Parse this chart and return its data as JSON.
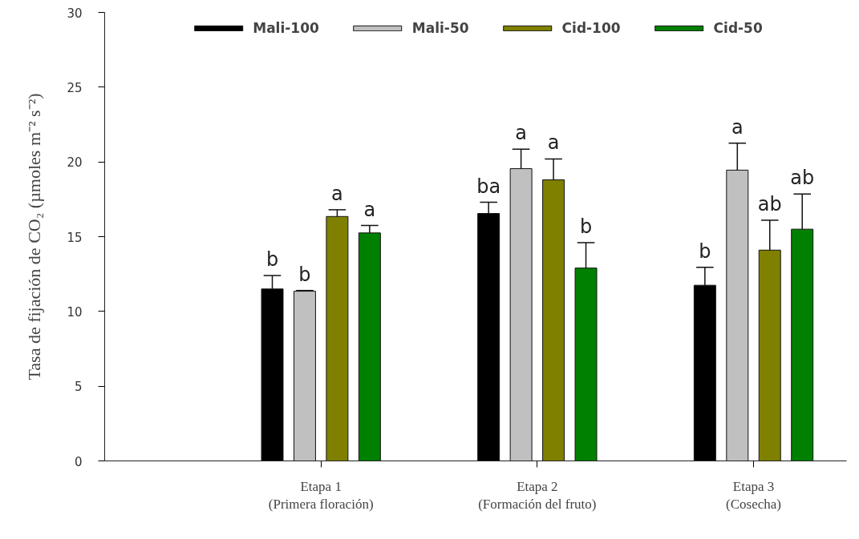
{
  "chart_data": {
    "type": "bar",
    "ylabel": "Tasa de fijación de CO₂ (µmoles m⁻² s⁻²)",
    "categories": [
      "Etapa 1\n(Primera floración)",
      "Etapa 2\n(Formación del fruto)",
      "Etapa 3\n(Cosecha)"
    ],
    "series": [
      {
        "name": "Mali-100",
        "color": "#000000",
        "values": [
          11.5,
          16.55,
          11.75
        ],
        "errors": [
          [
            11.5,
            12.4
          ],
          [
            16.55,
            17.3
          ],
          [
            11.75,
            12.95
          ]
        ],
        "value_labels": [
          "b",
          "ba",
          "b"
        ]
      },
      {
        "name": "Mali-50",
        "color": "#c0c0c0",
        "values": [
          11.35,
          19.55,
          19.45
        ],
        "errors": [
          [
            11.35,
            11.4
          ],
          [
            19.55,
            20.85
          ],
          [
            19.45,
            21.25
          ]
        ],
        "value_labels": [
          "b",
          "a",
          "a"
        ]
      },
      {
        "name": "Cid-100",
        "color": "#808000",
        "values": [
          16.35,
          18.8,
          14.1
        ],
        "errors": [
          [
            16.35,
            16.8
          ],
          [
            18.8,
            20.2
          ],
          [
            14.1,
            16.1
          ]
        ],
        "value_labels": [
          "a",
          "a",
          "ab"
        ]
      },
      {
        "name": "Cid-50",
        "color": "#008000",
        "values": [
          15.25,
          12.9,
          15.5
        ],
        "errors": [
          [
            15.25,
            15.75
          ],
          [
            12.9,
            14.6
          ],
          [
            15.5,
            17.85
          ]
        ],
        "value_labels": [
          "a",
          "b",
          "ab"
        ]
      }
    ],
    "ylim": [
      0,
      30
    ],
    "yticks": [
      0,
      5,
      10,
      15,
      20,
      25,
      30
    ],
    "grid": false,
    "legend": "top"
  }
}
